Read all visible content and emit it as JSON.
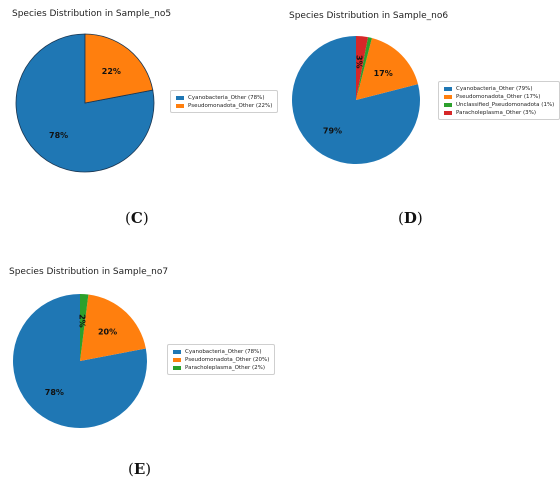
{
  "colors": {
    "cyanobacteria": "#1f77b4",
    "pseudomonadota": "#ff7f0e",
    "unclassified": "#2ca02c",
    "paracholeplasma": "#d62728"
  },
  "chart_data": [
    {
      "type": "pie",
      "panel_label": "C",
      "title": "Species Distribution in Sample_no5",
      "slices": [
        {
          "name": "Cyanobacteria_Other (78%)",
          "value": 78,
          "label": "78%",
          "color": "#1f77b4"
        },
        {
          "name": "Pseudomonadota_Other (22%)",
          "value": 22,
          "label": "22%",
          "color": "#ff7f0e"
        }
      ],
      "legend_placement": "right"
    },
    {
      "type": "pie",
      "panel_label": "D",
      "title": "Species Distribution in Sample_no6",
      "slices": [
        {
          "name": "Cyanobacteria_Other (79%)",
          "value": 79,
          "label": "79%",
          "color": "#1f77b4"
        },
        {
          "name": "Pseudomonadota_Other (17%)",
          "value": 17,
          "label": "17%",
          "color": "#ff7f0e"
        },
        {
          "name": "Unclassified_Pseudomonadota (1%)",
          "value": 1,
          "label": "",
          "color": "#2ca02c"
        },
        {
          "name": "Paracholeplasma_Other (3%)",
          "value": 3,
          "label": "3%",
          "color": "#d62728"
        }
      ],
      "legend_placement": "right"
    },
    {
      "type": "pie",
      "panel_label": "E",
      "title": "Species Distribution in Sample_no7",
      "slices": [
        {
          "name": "Cyanobacteria_Other (78%)",
          "value": 78,
          "label": "78%",
          "color": "#1f77b4"
        },
        {
          "name": "Pseudomonadota_Other (20%)",
          "value": 20,
          "label": "20%",
          "color": "#ff7f0e"
        },
        {
          "name": "Paracholeplasma_Other (2%)",
          "value": 2,
          "label": "2%",
          "color": "#2ca02c"
        }
      ],
      "legend_placement": "right"
    }
  ]
}
